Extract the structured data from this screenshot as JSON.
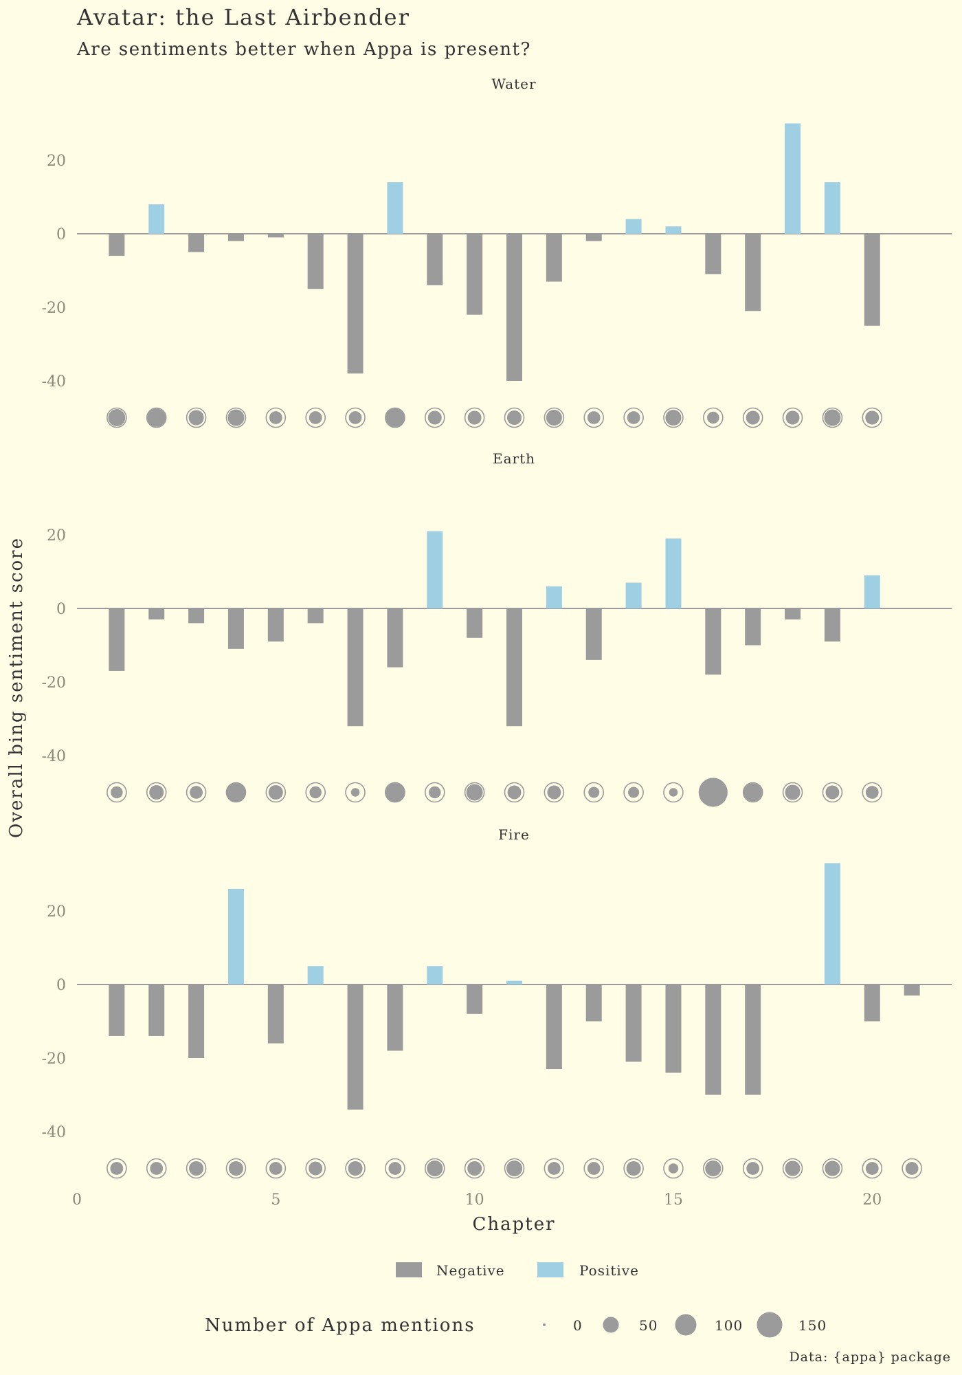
{
  "chart_data": {
    "type": "bar",
    "title": "Avatar: the Last Airbender",
    "subtitle": "Are sentiments better when Appa is present?",
    "xlabel": "Chapter",
    "ylabel": "Overall bing sentiment score",
    "x_ticks": [
      0,
      5,
      10,
      15,
      20
    ],
    "y_ticks": [
      20,
      0,
      -20,
      -40
    ],
    "ylim": [
      -53,
      33
    ],
    "xlim": [
      0,
      22
    ],
    "grid": false,
    "legend": {
      "fill_items": [
        {
          "label": "Negative",
          "color": "#9b9b9b"
        },
        {
          "label": "Positive",
          "color": "#9ecfe3"
        }
      ],
      "size_title": "Number of Appa mentions",
      "size_items": [
        {
          "label": "0",
          "value": 0
        },
        {
          "label": "50",
          "value": 50
        },
        {
          "label": "100",
          "value": 100
        },
        {
          "label": "150",
          "value": 150
        }
      ],
      "placement": "bottom"
    },
    "caption": "Data: {appa} package",
    "facets": [
      {
        "name": "Water",
        "chapters": [
          1,
          2,
          3,
          4,
          5,
          6,
          7,
          8,
          9,
          10,
          11,
          12,
          13,
          14,
          15,
          16,
          17,
          18,
          19,
          20
        ],
        "sentiment": [
          -6,
          8,
          -5,
          -2,
          -1,
          -15,
          -38,
          14,
          -14,
          -22,
          -40,
          -13,
          -2,
          4,
          2,
          -11,
          -21,
          30,
          14,
          -25
        ],
        "appa_mentions": [
          60,
          70,
          45,
          55,
          30,
          30,
          30,
          80,
          35,
          35,
          40,
          50,
          30,
          30,
          50,
          25,
          35,
          35,
          55,
          35
        ]
      },
      {
        "name": "Earth",
        "chapters": [
          1,
          2,
          3,
          4,
          5,
          6,
          7,
          8,
          9,
          10,
          11,
          12,
          13,
          14,
          15,
          16,
          17,
          18,
          19,
          20
        ],
        "sentiment": [
          -17,
          -3,
          -4,
          -11,
          -9,
          -4,
          -32,
          -16,
          21,
          -8,
          -32,
          6,
          -14,
          7,
          19,
          -18,
          -10,
          -3,
          -9,
          9
        ],
        "appa_mentions": [
          25,
          40,
          30,
          80,
          40,
          25,
          10,
          90,
          25,
          55,
          35,
          35,
          20,
          20,
          10,
          200,
          70,
          45,
          35,
          30
        ]
      },
      {
        "name": "Fire",
        "chapters": [
          1,
          2,
          3,
          4,
          5,
          6,
          7,
          8,
          9,
          10,
          11,
          12,
          13,
          14,
          15,
          16,
          17,
          18,
          19,
          20,
          21
        ],
        "sentiment": [
          -14,
          -14,
          -20,
          26,
          -16,
          5,
          -34,
          -18,
          5,
          -8,
          1,
          -23,
          -10,
          -21,
          -24,
          -30,
          -30,
          0,
          33,
          -10,
          -3
        ],
        "appa_mentions": [
          30,
          30,
          40,
          40,
          30,
          35,
          40,
          30,
          50,
          40,
          50,
          30,
          30,
          40,
          15,
          50,
          30,
          45,
          45,
          30,
          30
        ]
      }
    ]
  },
  "colors": {
    "background": "#fffde6",
    "negative": "#9b9b9b",
    "positive": "#9ecfe3",
    "axis_line": "#9b9b9b",
    "tick_text": "#8a8a7a",
    "text": "#333333"
  }
}
